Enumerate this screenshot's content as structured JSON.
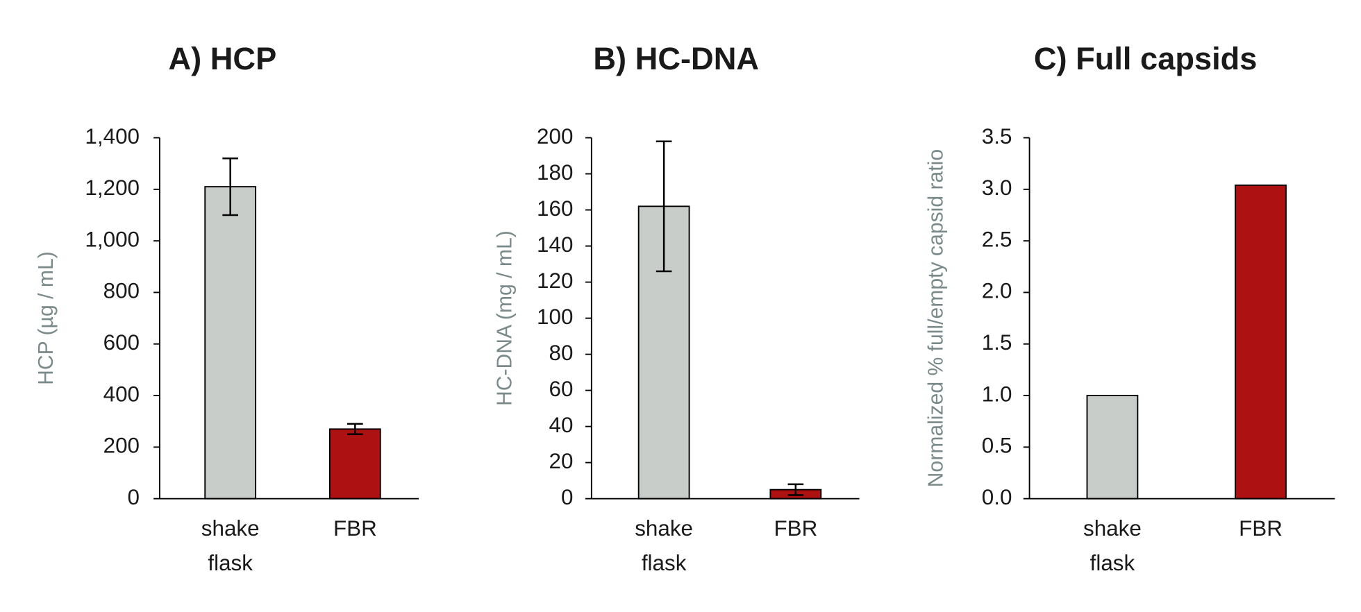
{
  "chart_data": [
    {
      "type": "bar",
      "title": "A) HCP",
      "y_label": "HCP (µg / mL)",
      "categories": [
        "shake flask",
        "FBR"
      ],
      "values": [
        1210,
        270
      ],
      "errors": [
        110,
        20
      ],
      "colors": [
        "#c9cdca",
        "#ae1111"
      ],
      "ylim": [
        0,
        1400
      ],
      "yticks": [
        0,
        200,
        400,
        600,
        800,
        {
          "value": 1000,
          "label": "1,000"
        },
        {
          "value": 1200,
          "label": "1,200"
        },
        {
          "value": 1400,
          "label": "1,400"
        }
      ]
    },
    {
      "type": "bar",
      "title": "B) HC-DNA",
      "y_label": "HC-DNA (mg / mL)",
      "categories": [
        "shake flask",
        "FBR"
      ],
      "values": [
        162,
        5
      ],
      "errors": [
        36,
        3
      ],
      "colors": [
        "#c9cdca",
        "#ae1111"
      ],
      "ylim": [
        0,
        200
      ],
      "yticks": [
        0,
        20,
        40,
        60,
        80,
        100,
        120,
        140,
        160,
        180,
        200
      ]
    },
    {
      "type": "bar",
      "title": "C) Full capsids",
      "y_label": "Normalized % full/empty capsid ratio",
      "categories": [
        "shake flask",
        "FBR"
      ],
      "values": [
        1.0,
        3.04
      ],
      "colors": [
        "#c9cdca",
        "#ae1111"
      ],
      "ylim": [
        0,
        3.5
      ],
      "yticks": [
        {
          "value": 0,
          "label": "0.0"
        },
        0.5,
        {
          "value": 1,
          "label": "1.0"
        },
        1.5,
        {
          "value": 2,
          "label": "2.0"
        },
        2.5,
        {
          "value": 3,
          "label": "3.0"
        },
        3.5
      ]
    }
  ]
}
